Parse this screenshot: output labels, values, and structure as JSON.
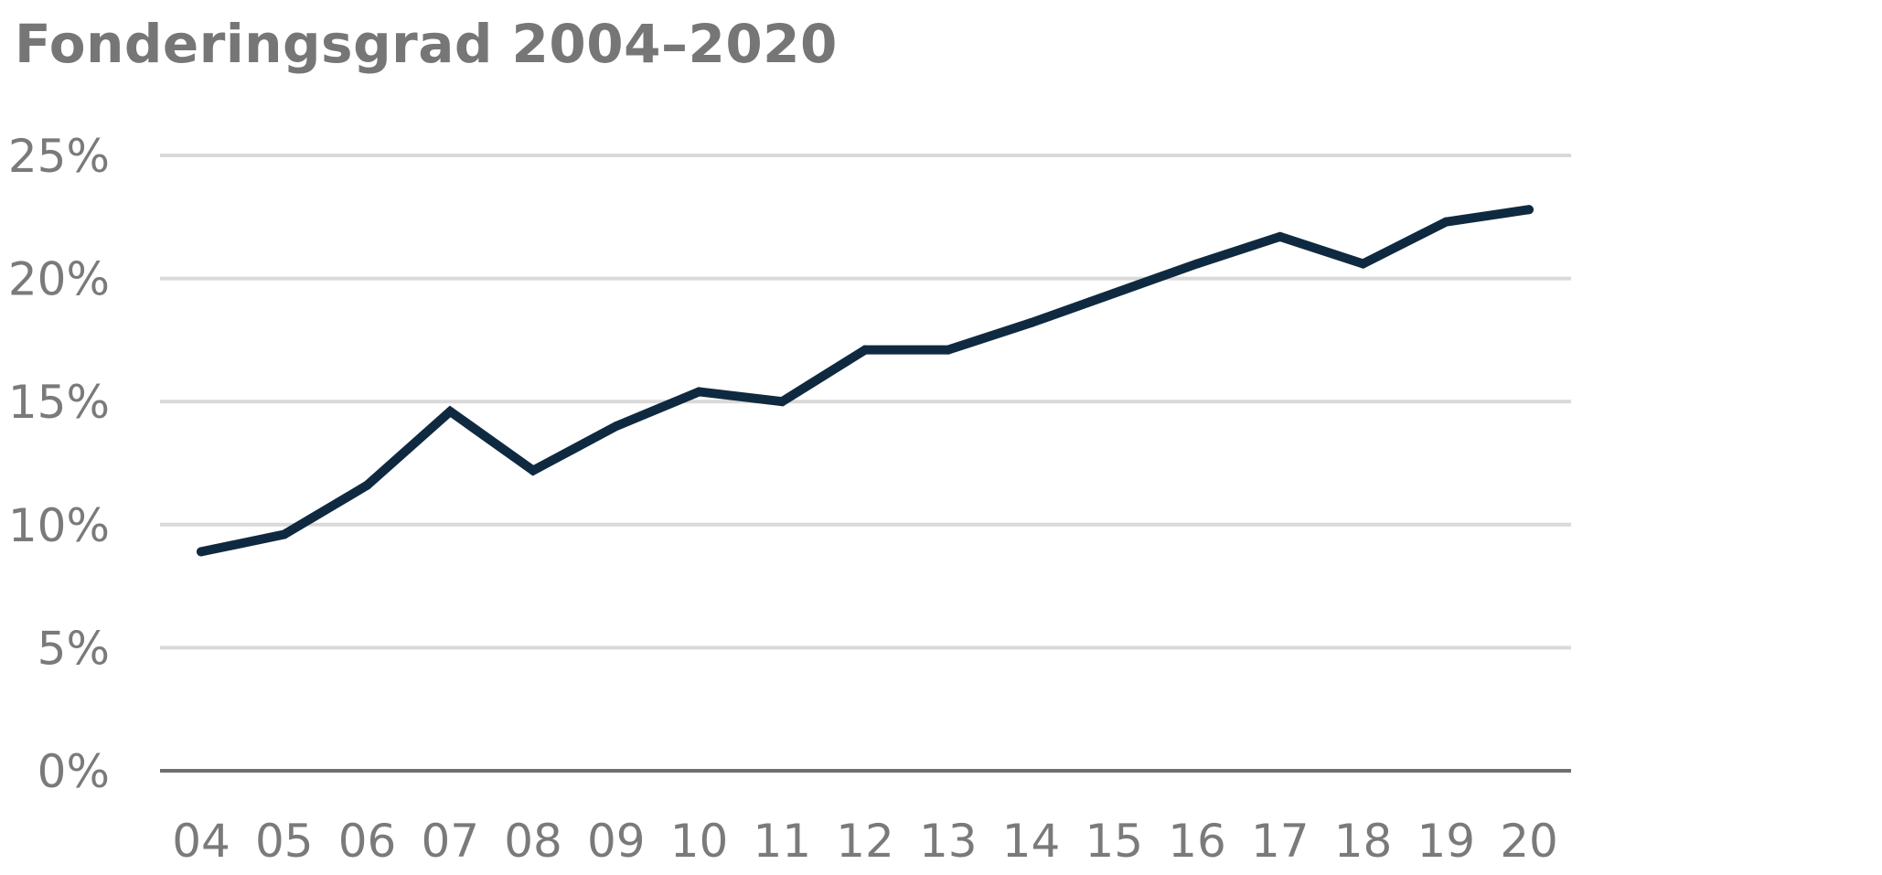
{
  "chart_data": {
    "type": "line",
    "title": "Fonderingsgrad 2004–2020",
    "xlabel": "",
    "ylabel": "",
    "categories": [
      "04",
      "05",
      "06",
      "07",
      "08",
      "09",
      "10",
      "11",
      "12",
      "13",
      "14",
      "15",
      "16",
      "17",
      "18",
      "19",
      "20"
    ],
    "values": [
      8.9,
      9.6,
      11.6,
      14.6,
      12.2,
      14.0,
      15.4,
      15.0,
      17.1,
      17.1,
      18.2,
      19.4,
      20.6,
      21.7,
      20.6,
      22.3,
      22.8
    ],
    "ylim": [
      0,
      25
    ],
    "yticks": [
      0,
      5,
      10,
      15,
      20,
      25
    ],
    "ytick_labels": [
      "0%",
      "5%",
      "10%",
      "15%",
      "20%",
      "25%"
    ],
    "grid": true,
    "colors": {
      "line": "#0f2a40",
      "grid": "#d9d9d9",
      "baseline": "#6e6e6e",
      "text": "#767676"
    }
  }
}
